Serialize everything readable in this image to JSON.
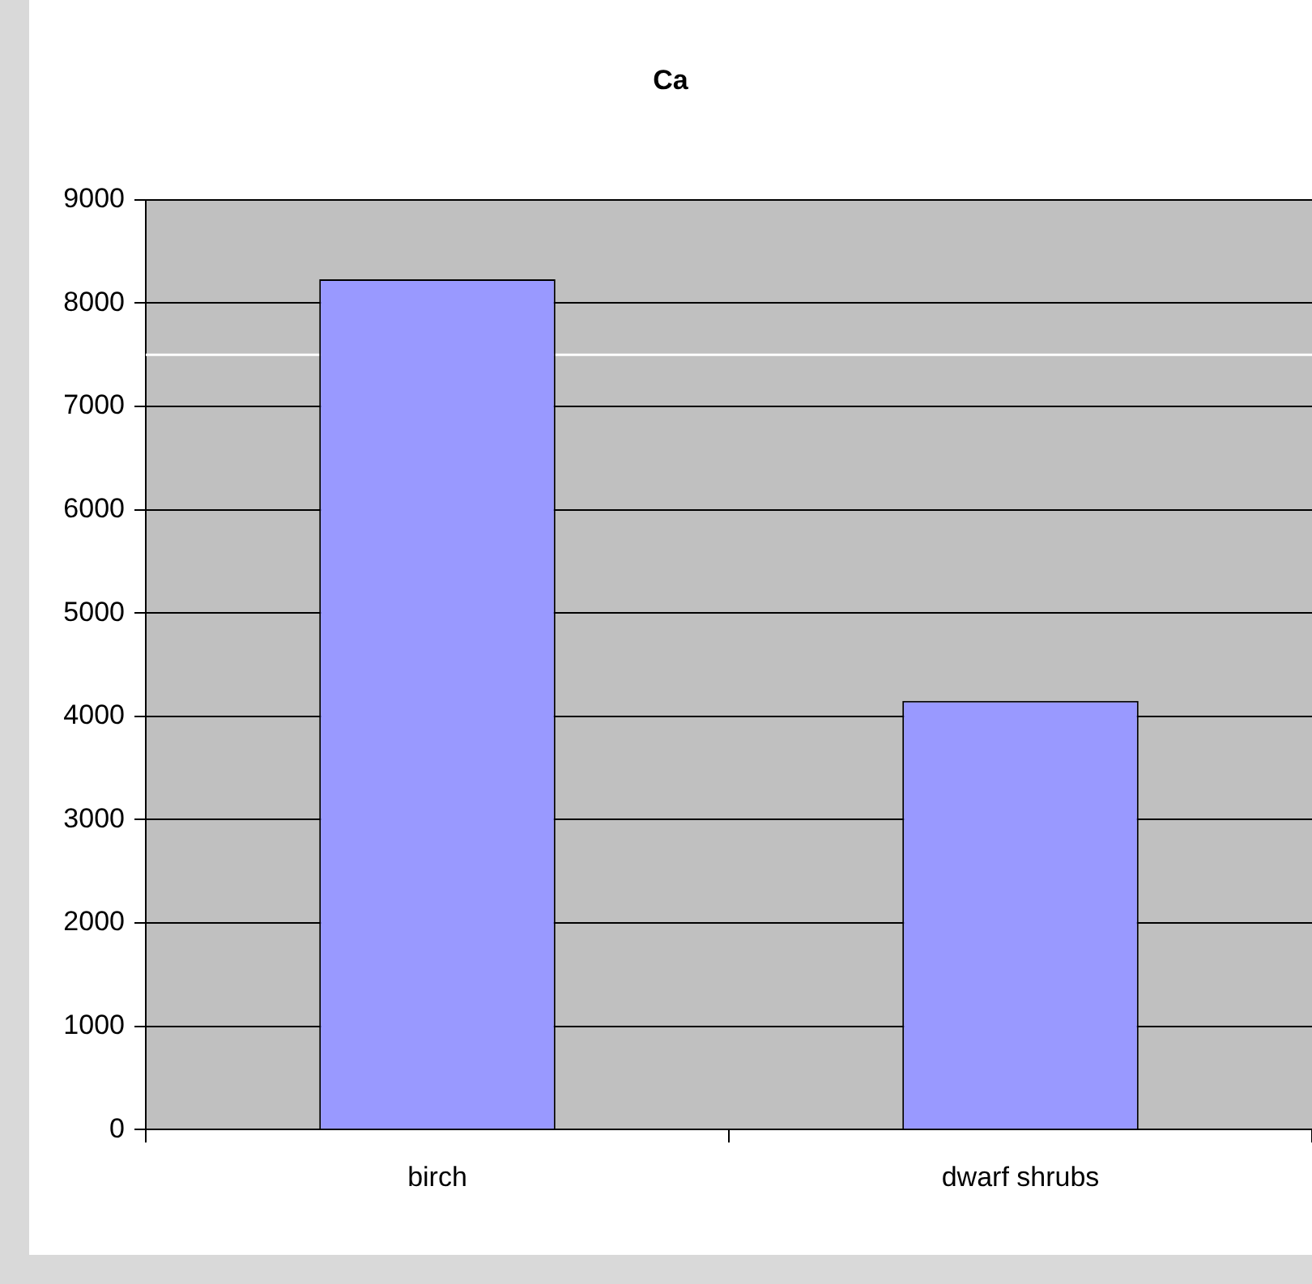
{
  "chart_data": {
    "type": "bar",
    "title": "Ca",
    "categories": [
      "birch",
      "dwarf shrubs"
    ],
    "values": [
      8230,
      4150
    ],
    "color": "#9999ff",
    "ylim": [
      0,
      9000
    ],
    "yticks": [
      0,
      1000,
      2000,
      3000,
      4000,
      5000,
      6000,
      7000,
      8000,
      9000
    ],
    "grid": "y",
    "legend": false,
    "ref_lines": [
      {
        "axis": "y",
        "value": 7500,
        "color": "#ffffff"
      }
    ]
  }
}
